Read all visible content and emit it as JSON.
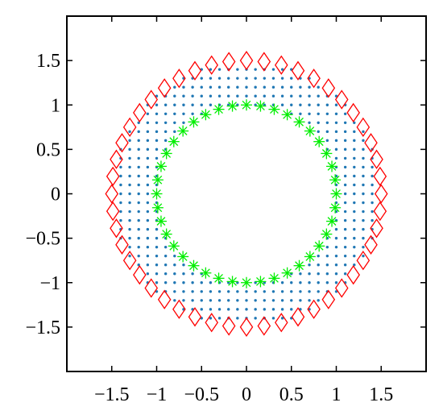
{
  "chart_data": {
    "type": "scatter",
    "title": "",
    "xlabel": "",
    "ylabel": "",
    "xlim": [
      -2,
      2
    ],
    "ylim": [
      -2,
      2
    ],
    "grid": false,
    "x_ticks": [
      -1.5,
      -1,
      -0.5,
      0,
      0.5,
      1,
      1.5
    ],
    "y_ticks": [
      -1.5,
      -1,
      -0.5,
      0,
      0.5,
      1,
      1.5
    ],
    "x_tick_labels": [
      "−1.5",
      "−1",
      "−0.5",
      "0",
      "0.5",
      "1",
      "1.5"
    ],
    "y_tick_labels": [
      "−1.5",
      "−1",
      "−0.5",
      "0",
      "0.5",
      "1",
      "1.5"
    ],
    "series": [
      {
        "marker": "dot",
        "color": "#1f77b4",
        "description_of_points": "regular grid of points, spacing 0.1, for every (x, y) with 1 < x^2 + y^2 < 1.5^2",
        "grid_step": 0.1,
        "inner_radius": 1.0,
        "outer_radius": 1.5
      },
      {
        "marker": "diamond",
        "color": "#ff0000",
        "circle_center": [
          0,
          0
        ],
        "circle_radius": 1.5,
        "count": 48
      },
      {
        "marker": "asterisk",
        "color": "#00ee00",
        "circle_center": [
          0,
          0
        ],
        "circle_radius": 1.0,
        "count": 40
      }
    ]
  }
}
